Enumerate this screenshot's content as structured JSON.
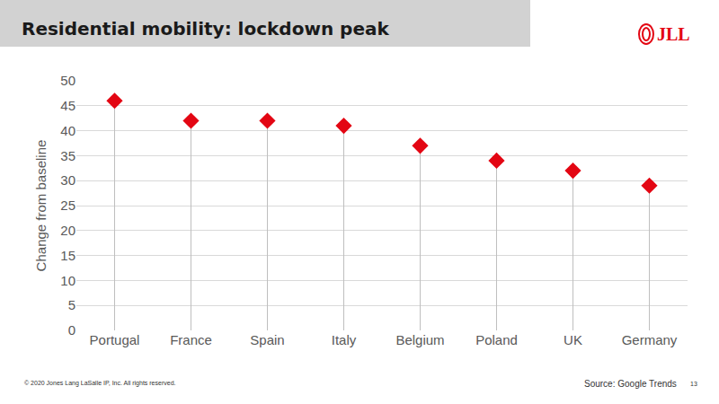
{
  "chart_data": {
    "type": "lollipop",
    "title": "Residential mobility: lockdown peak",
    "y_label": "Change from baseline",
    "categories": [
      "Portugal",
      "France",
      "Spain",
      "Italy",
      "Belgium",
      "Poland",
      "UK",
      "Germany"
    ],
    "values": [
      46,
      42,
      42,
      41,
      37,
      34,
      32,
      29
    ],
    "color": "#e30613",
    "marker": "diamond",
    "ylim": [
      0,
      50
    ],
    "yticks": [
      0,
      5,
      10,
      15,
      20,
      25,
      30,
      35,
      40,
      45,
      50
    ],
    "grid": true,
    "source": "Source: Google Trends",
    "copyright": "© 2020 Jones Lang LaSalle IP, Inc. All rights reserved.",
    "logo": "JLL",
    "page": "13"
  }
}
